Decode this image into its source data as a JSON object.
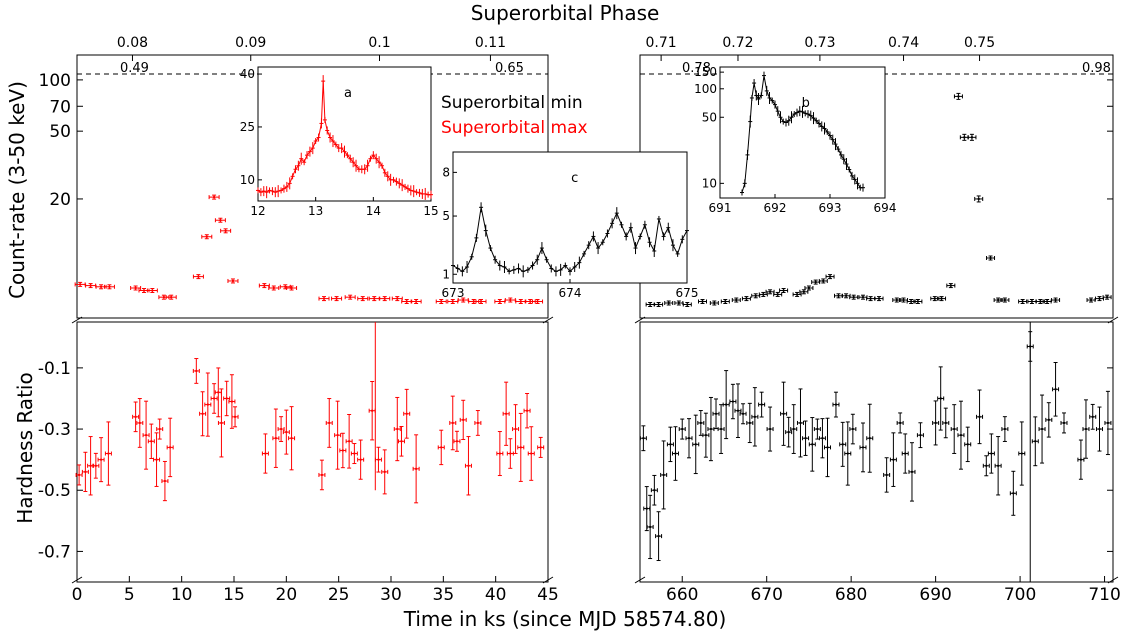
{
  "chart_data": {
    "type": "scatter",
    "titles": {
      "top_axis": "Superorbital Phase",
      "x_axis": "Time in ks (since MJD 58574.80)",
      "y_top": "Count-rate (3-50 keV)",
      "y_bottom": "Hardness Ratio"
    },
    "legend": [
      {
        "label": "Superorbital min",
        "color": "#000000"
      },
      {
        "label": "Superorbital max",
        "color": "#ff0000"
      }
    ],
    "colors": {
      "max": "#ff0000",
      "min": "#000000"
    },
    "left_panel": {
      "xlim": [
        0,
        45
      ],
      "x_ticks": [
        "0",
        "5",
        "10",
        "15",
        "20",
        "25",
        "30",
        "35",
        "40",
        "45"
      ],
      "phase_ticks": [
        {
          "t": 5.3,
          "label": "0.08"
        },
        {
          "t": 16.6,
          "label": "0.09"
        },
        {
          "t": 28.9,
          "label": "0.1"
        },
        {
          "t": 39.5,
          "label": "0.11"
        }
      ],
      "phase_edge_labels": [
        "0.49",
        "0.65"
      ],
      "count_rate": {
        "t": [
          0.3,
          1.3,
          2.3,
          3.1,
          5.6,
          6.4,
          7.2,
          8.3,
          9.0,
          11.6,
          12.4,
          13.1,
          13.7,
          14.2,
          14.9,
          17.9,
          18.8,
          19.9,
          20.5,
          23.6,
          24.8,
          26.1,
          27.3,
          28.4,
          29.4,
          30.6,
          31.5,
          32.4,
          34.8,
          35.9,
          36.9,
          37.9,
          38.6,
          40.4,
          41.4,
          42.4,
          43.3,
          44.0
        ],
        "rate": [
          6.3,
          6.2,
          6.1,
          6.1,
          6.0,
          5.8,
          5.8,
          5.3,
          5.3,
          7.0,
          12.0,
          20.5,
          15.0,
          13.0,
          6.6,
          6.2,
          6.0,
          6.1,
          6.0,
          5.2,
          5.2,
          5.3,
          5.2,
          5.2,
          5.2,
          5.2,
          5.0,
          5.0,
          5.0,
          5.0,
          5.1,
          5.0,
          5.0,
          5.0,
          5.1,
          5.0,
          5.0,
          5.0
        ]
      },
      "hardness": {
        "t": [
          0.2,
          0.8,
          1.3,
          1.8,
          2.3,
          3.0,
          5.6,
          6.0,
          6.6,
          7.1,
          7.6,
          7.9,
          8.4,
          8.9,
          11.4,
          12.0,
          12.5,
          13.1,
          13.5,
          13.8,
          14.3,
          14.8,
          15.1,
          18.0,
          19.0,
          19.5,
          20.0,
          20.5,
          23.4,
          24.1,
          24.9,
          25.4,
          26.0,
          26.5,
          27.1,
          28.2,
          28.8,
          29.4,
          30.6,
          31.0,
          31.5,
          32.4,
          34.8,
          35.9,
          36.3,
          36.9,
          37.4,
          38.3,
          40.4,
          41.0,
          41.4,
          41.9,
          42.4,
          43.0,
          43.4,
          44.3
        ],
        "hr": [
          -0.45,
          -0.44,
          -0.42,
          -0.42,
          -0.4,
          -0.38,
          -0.26,
          -0.28,
          -0.32,
          -0.34,
          -0.4,
          -0.3,
          -0.47,
          -0.36,
          -0.11,
          -0.25,
          -0.22,
          -0.2,
          -0.18,
          -0.28,
          -0.2,
          -0.21,
          -0.26,
          -0.38,
          -0.33,
          -0.3,
          -0.31,
          -0.33,
          -0.45,
          -0.28,
          -0.32,
          -0.37,
          -0.34,
          -0.38,
          -0.4,
          -0.24,
          -0.4,
          -0.44,
          -0.3,
          -0.34,
          -0.25,
          -0.43,
          -0.36,
          -0.28,
          -0.34,
          -0.27,
          -0.42,
          -0.28,
          -0.38,
          -0.25,
          -0.38,
          -0.3,
          -0.36,
          -0.24,
          -0.38,
          -0.36
        ]
      }
    },
    "right_panel": {
      "xlim": [
        655,
        711
      ],
      "x_ticks": [
        "660",
        "670",
        "680",
        "690",
        "700",
        "710"
      ],
      "phase_ticks": [
        {
          "t": 657.5,
          "label": "0.71"
        },
        {
          "t": 666.6,
          "label": "0.72"
        },
        {
          "t": 676.3,
          "label": "0.73"
        },
        {
          "t": 686.2,
          "label": "0.74"
        },
        {
          "t": 695.2,
          "label": "0.75"
        }
      ],
      "phase_edge_labels": [
        "0.78",
        "0.98"
      ],
      "count_rate": {
        "t": [
          656.2,
          657.2,
          658.4,
          659.6,
          660.6,
          662.4,
          663.8,
          665.1,
          666.4,
          667.6,
          668.7,
          669.6,
          670.4,
          671.3,
          672.0,
          673.6,
          674.4,
          675.0,
          675.8,
          676.7,
          677.5,
          678.5,
          679.4,
          680.3,
          681.4,
          682.3,
          683.3,
          685.4,
          686.2,
          687.1,
          687.9,
          689.9,
          690.7,
          691.8,
          692.7,
          693.4,
          694.3,
          695.1,
          696.5,
          697.4,
          698.2,
          700.3,
          701.4,
          702.4,
          703.2,
          704.2,
          708.4,
          709.4,
          710.3
        ],
        "rate": [
          4.8,
          4.8,
          4.9,
          4.9,
          4.8,
          5.0,
          4.9,
          5.0,
          5.1,
          5.2,
          5.4,
          5.5,
          5.7,
          5.5,
          5.8,
          5.5,
          5.7,
          6.0,
          6.5,
          6.6,
          7.0,
          5.4,
          5.4,
          5.3,
          5.3,
          5.2,
          5.2,
          5.1,
          5.1,
          5.0,
          5.0,
          5.2,
          5.2,
          6.2,
          80,
          46,
          46,
          20,
          9.0,
          5.1,
          5.1,
          5.0,
          5.0,
          5.0,
          5.0,
          5.1,
          5.1,
          5.2,
          5.3
        ]
      },
      "hardness": {
        "t": [
          655.4,
          655.8,
          656.2,
          656.7,
          657.2,
          657.8,
          658.6,
          659.2,
          660.0,
          660.8,
          661.6,
          662.2,
          662.8,
          663.4,
          664.0,
          664.6,
          665.2,
          666.0,
          666.6,
          667.2,
          668.0,
          668.6,
          669.4,
          670.4,
          672.0,
          672.6,
          673.2,
          674.0,
          674.6,
          675.4,
          676.0,
          676.6,
          677.2,
          678.2,
          679.0,
          679.6,
          680.2,
          681.4,
          682.2,
          684.2,
          685.0,
          685.8,
          686.4,
          687.2,
          688.2,
          690.0,
          690.6,
          691.2,
          692.2,
          693.0,
          693.8,
          695.2,
          696.0,
          696.6,
          697.4,
          698.2,
          699.2,
          700.2,
          701.2,
          701.8,
          702.6,
          703.4,
          704.2,
          705.2,
          707.2,
          707.8,
          708.6,
          709.4,
          710.4
        ],
        "hr": [
          -0.33,
          -0.56,
          -0.62,
          -0.5,
          -0.65,
          -0.45,
          -0.35,
          -0.38,
          -0.3,
          -0.33,
          -0.35,
          -0.28,
          -0.32,
          -0.3,
          -0.25,
          -0.3,
          -0.22,
          -0.21,
          -0.24,
          -0.25,
          -0.28,
          -0.26,
          -0.22,
          -0.3,
          -0.25,
          -0.31,
          -0.3,
          -0.28,
          -0.33,
          -0.35,
          -0.3,
          -0.33,
          -0.36,
          -0.22,
          -0.35,
          -0.38,
          -0.3,
          -0.36,
          -0.33,
          -0.45,
          -0.4,
          -0.28,
          -0.38,
          -0.44,
          -0.32,
          -0.28,
          -0.2,
          -0.28,
          -0.3,
          -0.32,
          -0.35,
          -0.26,
          -0.42,
          -0.38,
          -0.42,
          -0.3,
          -0.51,
          -0.38,
          -0.03,
          -0.34,
          -0.3,
          -0.27,
          -0.17,
          -0.28,
          -0.4,
          -0.3,
          -0.26,
          -0.3,
          -0.28
        ]
      }
    },
    "count_rate_ticks": [
      "20",
      "50",
      "70",
      "100"
    ],
    "hardness_ticks": [
      "-0.1",
      "-0.3",
      "-0.5",
      "-0.7"
    ],
    "hardness_ylim": [
      -0.8,
      0.05
    ],
    "insets": [
      {
        "id": "a",
        "label": "a",
        "color": "#ff0000",
        "xlim": [
          12,
          15
        ],
        "x_ticks": [
          "12",
          "13",
          "14",
          "15"
        ],
        "y_ticks": [
          "10",
          "25",
          "40"
        ],
        "x": [
          12.0,
          12.05,
          12.1,
          12.15,
          12.2,
          12.25,
          12.3,
          12.35,
          12.4,
          12.45,
          12.5,
          12.55,
          12.6,
          12.65,
          12.7,
          12.75,
          12.8,
          12.85,
          12.9,
          12.95,
          13.0,
          13.05,
          13.1,
          13.13,
          13.16,
          13.2,
          13.25,
          13.3,
          13.35,
          13.4,
          13.45,
          13.5,
          13.55,
          13.6,
          13.65,
          13.7,
          13.75,
          13.8,
          13.85,
          13.9,
          13.95,
          14.0,
          14.05,
          14.1,
          14.15,
          14.2,
          14.25,
          14.3,
          14.35,
          14.4,
          14.45,
          14.5,
          14.55,
          14.6,
          14.65,
          14.7,
          14.75,
          14.8,
          14.85,
          14.9,
          14.95,
          15.0
        ],
        "y": [
          7,
          6.5,
          6.8,
          6.5,
          7,
          6.8,
          6.5,
          6.8,
          7,
          7.5,
          8,
          9,
          11,
          13,
          14,
          16,
          15,
          17,
          18,
          19,
          21,
          22,
          26,
          38,
          27,
          24,
          22,
          21,
          20,
          19,
          19,
          18,
          17,
          16,
          15,
          14,
          13,
          13,
          13,
          14,
          16,
          17,
          16,
          15,
          14,
          12,
          11,
          10,
          10,
          9.5,
          9,
          8.5,
          8,
          7.5,
          7,
          6.8,
          6.5,
          6.3,
          6,
          6,
          5.8,
          5.8
        ]
      },
      {
        "id": "b",
        "label": "b",
        "color": "#000000",
        "xlim": [
          691,
          694
        ],
        "x_ticks": [
          "691",
          "692",
          "693",
          "694"
        ],
        "y_ticks": [
          "10",
          "50",
          "100",
          "150"
        ],
        "x": [
          691.4,
          691.45,
          691.5,
          691.55,
          691.58,
          691.62,
          691.66,
          691.7,
          691.75,
          691.8,
          691.85,
          691.9,
          691.95,
          692.0,
          692.05,
          692.1,
          692.15,
          692.2,
          692.25,
          692.3,
          692.35,
          692.4,
          692.45,
          692.5,
          692.55,
          692.6,
          692.65,
          692.7,
          692.75,
          692.8,
          692.85,
          692.9,
          692.95,
          693.0,
          693.05,
          693.1,
          693.15,
          693.2,
          693.25,
          693.3,
          693.35,
          693.4,
          693.45,
          693.5,
          693.55,
          693.6
        ],
        "y": [
          8,
          10,
          20,
          45,
          80,
          115,
          85,
          78,
          85,
          138,
          95,
          80,
          75,
          68,
          58,
          50,
          45,
          44,
          46,
          50,
          54,
          56,
          58,
          57,
          55,
          54,
          52,
          49,
          46,
          43,
          40,
          38,
          35,
          32,
          29,
          26,
          23,
          20,
          18,
          16,
          14,
          12,
          11,
          10,
          9,
          9
        ]
      },
      {
        "id": "c",
        "label": "c",
        "color": "#000000",
        "xlim": [
          673,
          675
        ],
        "x_ticks": [
          "673",
          "674",
          "675"
        ],
        "y_ticks": [
          "1",
          "5",
          "8"
        ],
        "x": [
          673.0,
          673.04,
          673.08,
          673.12,
          673.16,
          673.2,
          673.24,
          673.28,
          673.32,
          673.36,
          673.4,
          673.44,
          673.48,
          673.52,
          673.56,
          673.6,
          673.64,
          673.68,
          673.72,
          673.76,
          673.8,
          673.84,
          673.88,
          673.92,
          673.96,
          674.0,
          674.04,
          674.08,
          674.12,
          674.16,
          674.2,
          674.24,
          674.28,
          674.32,
          674.36,
          674.4,
          674.44,
          674.48,
          674.52,
          674.56,
          674.6,
          674.64,
          674.68,
          674.72,
          674.76,
          674.8,
          674.84,
          674.88,
          674.92,
          674.96,
          675.0
        ],
        "y": [
          1.6,
          1.4,
          1.2,
          1.5,
          2.2,
          3.5,
          5.6,
          4.0,
          2.8,
          2.0,
          1.6,
          1.5,
          1.2,
          1.3,
          1.4,
          1.2,
          1.3,
          1.6,
          2.0,
          2.8,
          2.0,
          1.4,
          1.2,
          1.3,
          1.6,
          1.2,
          1.5,
          1.8,
          2.4,
          3.0,
          3.6,
          2.8,
          3.2,
          3.8,
          4.5,
          5.2,
          4.4,
          3.6,
          4.2,
          2.8,
          3.6,
          4.4,
          3.2,
          2.6,
          4.8,
          3.6,
          4.2,
          3.0,
          2.4,
          3.4,
          4.0
        ]
      }
    ]
  }
}
